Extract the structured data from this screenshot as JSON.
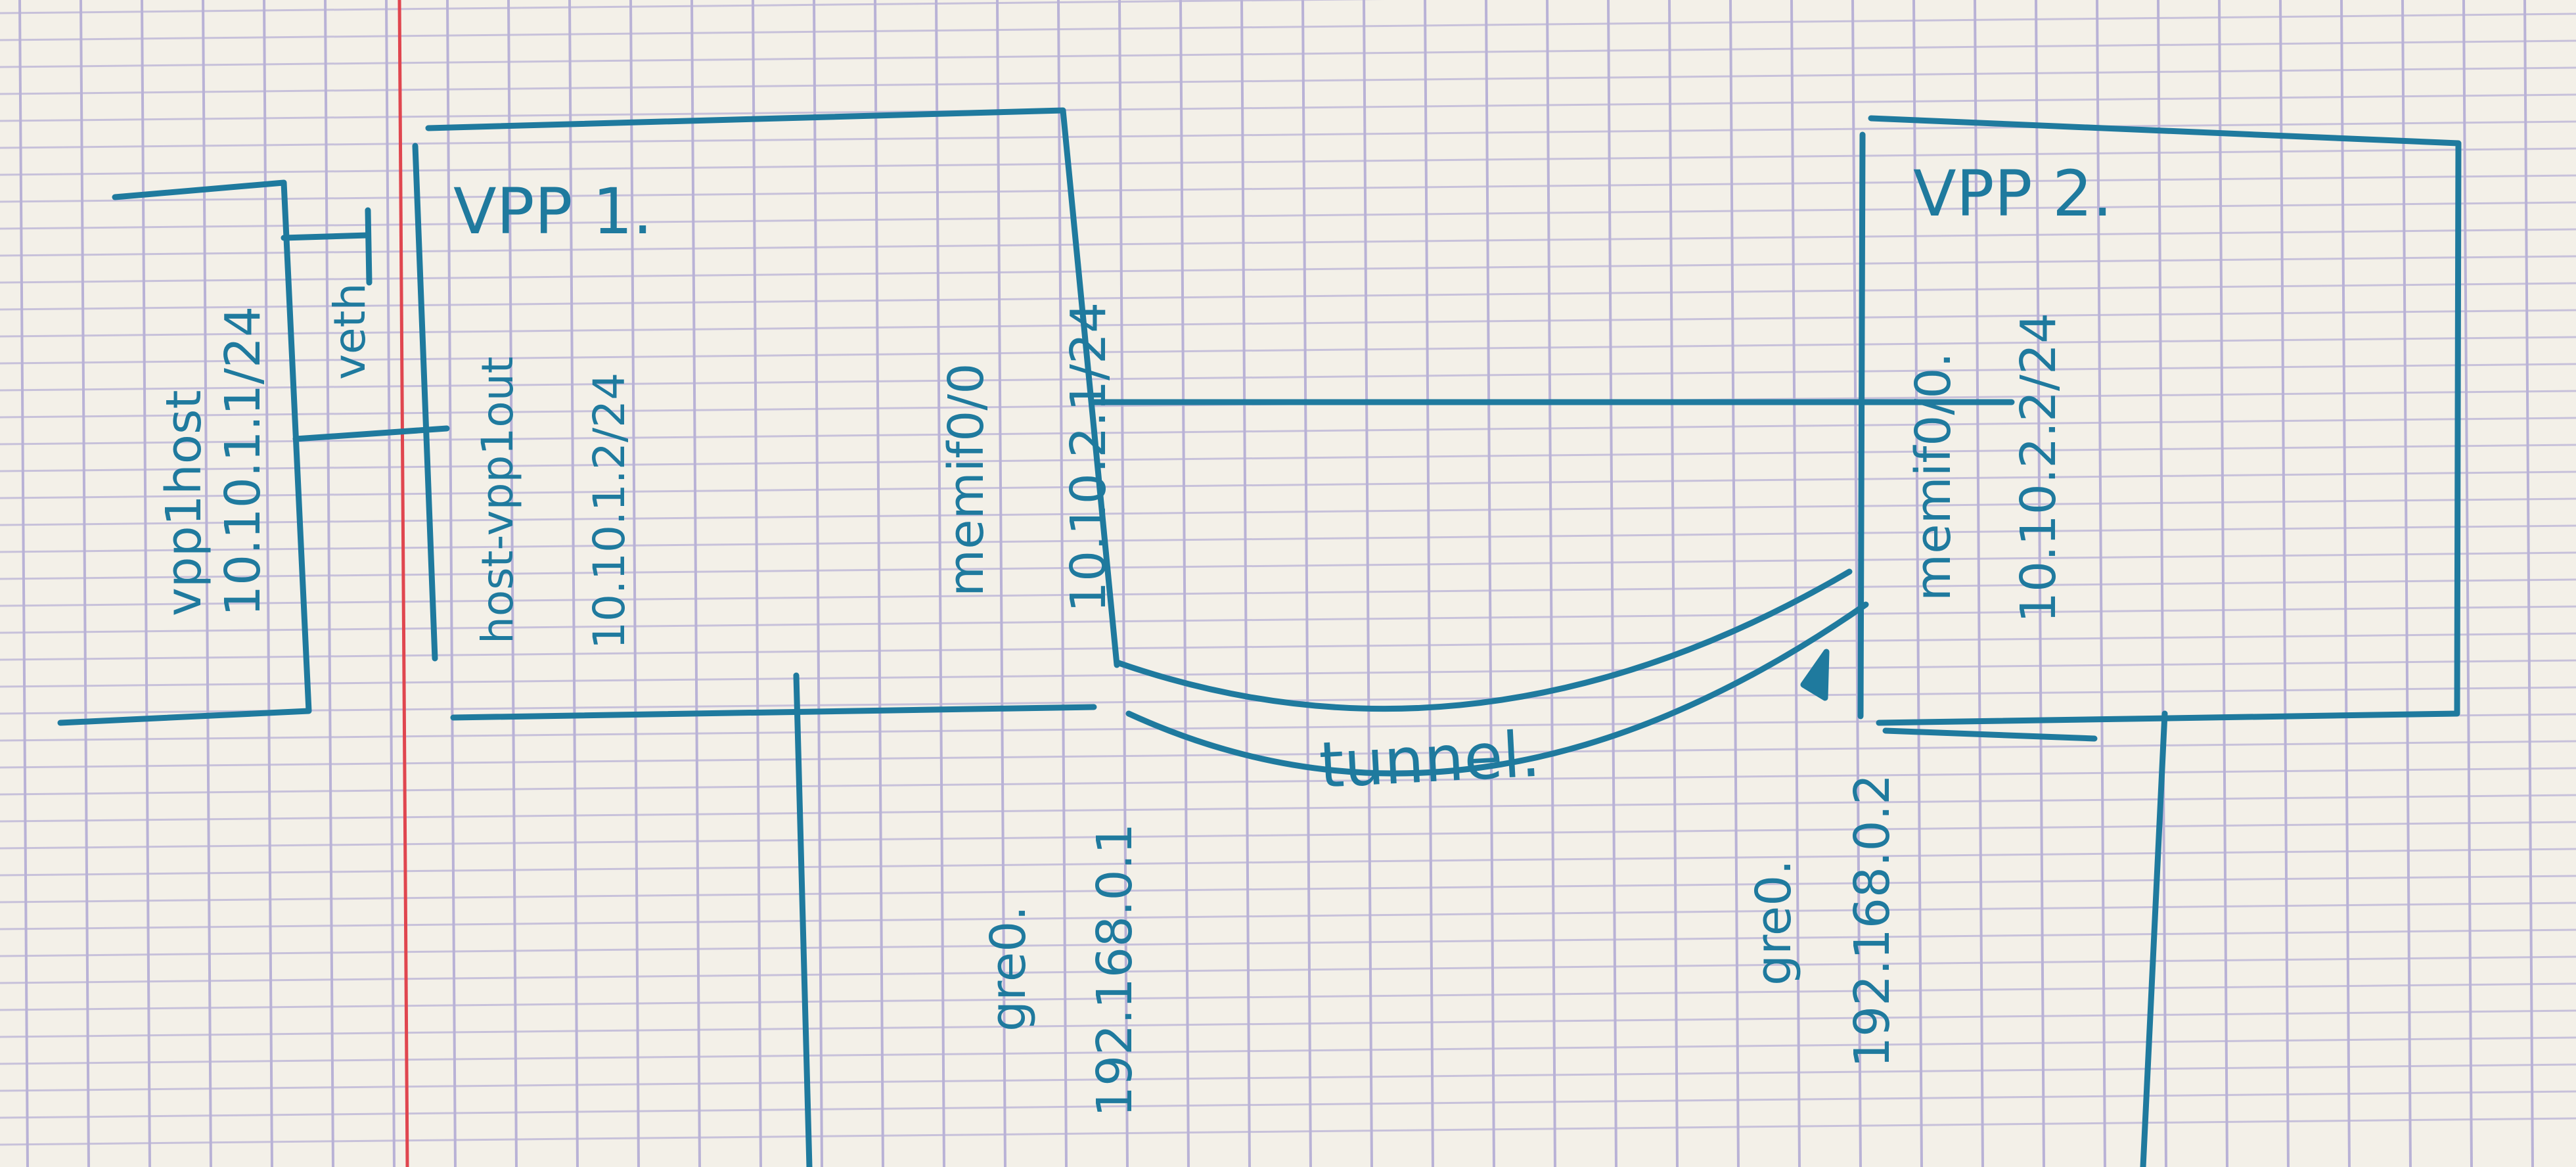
{
  "vpp1": {
    "title": "VPP 1."
  },
  "vpp2": {
    "title": "VPP 2."
  },
  "host_box": {
    "name": "vpp1host",
    "address": "10.10.1.1/24",
    "link_label": "veth"
  },
  "vpp1_interfaces": {
    "host_name": "host-vpp1out",
    "host_address": "10.10.1.2/24",
    "memif_name": "memif0/0",
    "memif_address": "10.10.2.1/24",
    "gre_name": "gre0.",
    "gre_address": "192.168.0.1"
  },
  "vpp2_interfaces": {
    "memif_name": "memif0/0.",
    "memif_address": "10.10.2.2/24",
    "gre_name": "gre0.",
    "gre_address": "192.168.0.2"
  },
  "tunnel_label": "tunnel.",
  "colors": {
    "ink": "#1f7a9e",
    "paper": "#f3f0e8",
    "grid": "#b9b2d6",
    "margin_line": "#e0464f"
  }
}
